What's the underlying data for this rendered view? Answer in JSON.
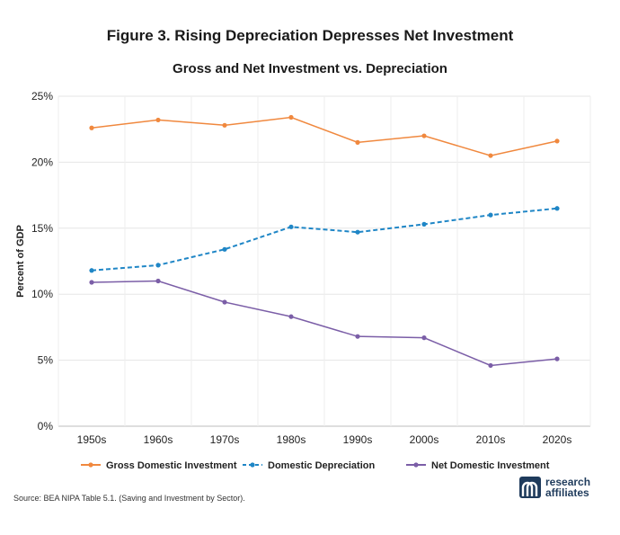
{
  "figure_title": "Figure 3. Rising Depreciation Depresses Net Investment",
  "source": "Source: BEA NIPA Table 5.1. (Saving and Investment by Sector).",
  "brand": {
    "line1": "research",
    "line2": "affiliates",
    "logo": "research-affiliates-logo"
  },
  "chart_data": {
    "type": "line",
    "title": "Gross and Net Investment vs. Depreciation",
    "xlabel": "",
    "ylabel": "Percent of GDP",
    "categories": [
      "1950s",
      "1960s",
      "1970s",
      "1980s",
      "1990s",
      "2000s",
      "2010s",
      "2020s"
    ],
    "ylim": [
      0,
      25
    ],
    "yticks": [
      "0%",
      "5%",
      "10%",
      "15%",
      "20%",
      "25%"
    ],
    "grid": true,
    "legend": "bottom",
    "series": [
      {
        "name": "Gross Domestic Investment",
        "color": "#f0883e",
        "dash": "solid",
        "values": [
          22.6,
          23.2,
          22.8,
          23.4,
          21.5,
          22.0,
          20.5,
          21.6
        ]
      },
      {
        "name": "Domestic Depreciation",
        "color": "#1f86c6",
        "dash": "dashed",
        "values": [
          11.8,
          12.2,
          13.4,
          15.1,
          14.7,
          15.3,
          16.0,
          16.5
        ]
      },
      {
        "name": "Net Domestic Investment",
        "color": "#7b5ea7",
        "dash": "solid",
        "values": [
          10.9,
          11.0,
          9.4,
          8.3,
          6.8,
          6.7,
          4.6,
          5.1
        ]
      }
    ]
  }
}
